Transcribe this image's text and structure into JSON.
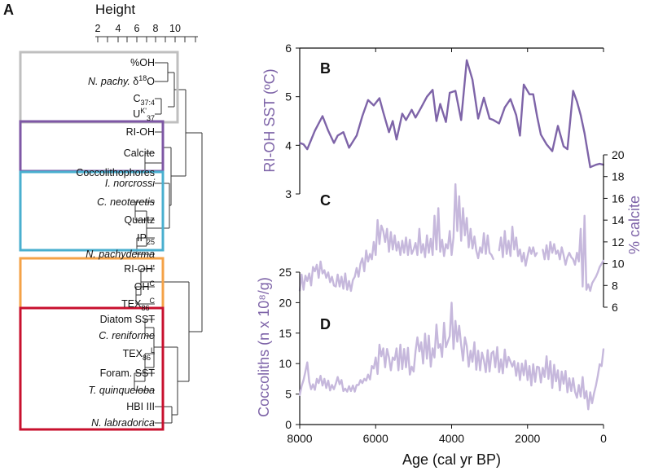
{
  "colors": {
    "purple": "#7E64A8",
    "light_purple": "#C6B8DC",
    "box_gray": "#BFBFBF",
    "box_purple": "#7E57A5",
    "box_blue": "#49AFCF",
    "box_orange": "#F4A247",
    "box_red": "#C8102E"
  },
  "panel_a": {
    "label": "A",
    "height_title": "Height",
    "height_ticks": [
      "2",
      "4",
      "6",
      "8",
      "10"
    ],
    "groups": [
      {
        "color": "gray",
        "items": [
          {
            "type": "plain",
            "t": "%OH"
          },
          {
            "type": "pachy",
            "a": "N. pachy.",
            "b": " δ",
            "c": "18",
            "d": "O"
          },
          {
            "type": "c37",
            "a": "C",
            "b": "37:4"
          },
          {
            "type": "uk",
            "a": "U",
            "b": "K'",
            "c": "37"
          }
        ]
      },
      {
        "color": "purple",
        "items": [
          {
            "type": "plain",
            "t": "RI-OH"
          },
          {
            "type": "plain",
            "t": "Calcite"
          },
          {
            "type": "plain",
            "t": "Coccolithophores"
          }
        ]
      },
      {
        "color": "blue",
        "items": [
          {
            "type": "italic",
            "t": "I. norcrossi"
          },
          {
            "type": "italic",
            "t": "C. neoteretis"
          },
          {
            "type": "plain",
            "t": "Quartz"
          },
          {
            "type": "ip",
            "a": "IP",
            "b": "25"
          },
          {
            "type": "italic",
            "t": "N. pachyderma"
          }
        ]
      },
      {
        "color": "orange",
        "items": [
          {
            "type": "plain",
            "t": "RI-OH'"
          },
          {
            "type": "sup",
            "a": "OH",
            "b": "C"
          },
          {
            "type": "tex",
            "a": "TEX",
            "b": "86",
            "c": "C"
          }
        ]
      },
      {
        "color": "red",
        "items": [
          {
            "type": "plain",
            "t": "Diatom SST"
          },
          {
            "type": "italic",
            "t": "C. reniforme"
          },
          {
            "type": "tex",
            "a": "TEX",
            "b": "86",
            "c": "L"
          },
          {
            "type": "plain",
            "t": "Foram. SST"
          },
          {
            "type": "italic",
            "t": "T. quinqueloba"
          },
          {
            "type": "plain",
            "t": "HBI III"
          },
          {
            "type": "italic",
            "t": "N. labradorica"
          }
        ]
      }
    ]
  },
  "chart_data": [
    {
      "type": "line",
      "panel": "B",
      "ylabel": "RI-OH SST (ºC)",
      "ylim": [
        3,
        6
      ],
      "yticks": [
        "3",
        "4",
        "5",
        "6"
      ],
      "x": [
        8000,
        7900,
        7800,
        7600,
        7400,
        7250,
        7100,
        7000,
        6850,
        6700,
        6500,
        6350,
        6200,
        6050,
        5900,
        5800,
        5650,
        5550,
        5450,
        5300,
        5200,
        5050,
        4950,
        4800,
        4650,
        4500,
        4400,
        4300,
        4150,
        4050,
        3900,
        3750,
        3600,
        3450,
        3300,
        3150,
        3000,
        2900,
        2750,
        2600,
        2450,
        2300,
        2200,
        2100,
        1950,
        1850,
        1750,
        1650,
        1500,
        1350,
        1200,
        1050,
        950,
        800,
        700,
        600,
        500,
        350,
        200,
        100,
        0
      ],
      "y": [
        4.05,
        4.02,
        3.92,
        4.3,
        4.6,
        4.3,
        4.05,
        4.2,
        4.27,
        3.95,
        4.2,
        4.6,
        4.93,
        4.82,
        4.97,
        4.68,
        4.27,
        4.5,
        4.12,
        4.65,
        4.52,
        4.73,
        4.57,
        4.78,
        5.0,
        5.14,
        4.5,
        4.85,
        4.48,
        5.08,
        5.12,
        4.52,
        5.75,
        5.35,
        4.55,
        4.98,
        4.55,
        4.52,
        4.45,
        4.78,
        4.95,
        4.62,
        4.2,
        5.25,
        5.05,
        5.05,
        4.6,
        4.22,
        4.02,
        3.88,
        4.4,
        3.98,
        3.92,
        5.12,
        4.9,
        4.62,
        4.25,
        3.55,
        3.6,
        3.62,
        3.6
      ]
    },
    {
      "type": "line",
      "panel": "C",
      "ylabel": "% calcite",
      "ylim": [
        6,
        20
      ],
      "yticks": [
        "6",
        "8",
        "10",
        "12",
        "14",
        "16",
        "18",
        "20"
      ],
      "x": [
        8000,
        7950,
        7900,
        7850,
        7800,
        7750,
        7700,
        7650,
        7600,
        7550,
        7500,
        7450,
        7400,
        7350,
        7300,
        7250,
        7200,
        7150,
        7100,
        7050,
        7000,
        6950,
        6900,
        6850,
        6800,
        6750,
        6700,
        6650,
        6600,
        6550,
        6500,
        6450,
        6400,
        6350,
        6300,
        6250,
        6200,
        6150,
        6100,
        6050,
        6000,
        5950,
        5900,
        5850,
        5800,
        5750,
        5700,
        5650,
        5600,
        5550,
        5500,
        5450,
        5400,
        5350,
        5300,
        5250,
        5200,
        5150,
        5100,
        5050,
        5000,
        4950,
        4900,
        4850,
        4800,
        4750,
        4700,
        4650,
        4600,
        4550,
        4500,
        4450,
        4400,
        4350,
        4300,
        4250,
        4200,
        4150,
        4100,
        4050,
        4000,
        3950,
        3900,
        3850,
        3800,
        3750,
        3700,
        3650,
        3600,
        3550,
        3500,
        3450,
        3400,
        3350,
        3300,
        3250,
        3200,
        3150,
        3100,
        3050,
        3000,
        2950,
        2900,
        null,
        2750,
        2700,
        2650,
        2600,
        2550,
        2500,
        2450,
        2400,
        2350,
        2300,
        2250,
        2200,
        2150,
        2100,
        2050,
        2000,
        1950,
        1900,
        1850,
        1800,
        1750,
        null,
        1600,
        1550,
        1500,
        1450,
        1400,
        1350,
        1300,
        1250,
        1200,
        1150,
        1100,
        1050,
        1000,
        950,
        900,
        850,
        800,
        750,
        700,
        650,
        600,
        550,
        500,
        450,
        400,
        350,
        300,
        250,
        200,
        150,
        100,
        50,
        0
      ],
      "y": [
        7.5,
        9.0,
        7.6,
        8.9,
        8.4,
        9.1,
        8.0,
        9.7,
        9.3,
        9.9,
        8.7,
        10.2,
        9.1,
        9.4,
        8.7,
        9.2,
        8.3,
        8.8,
        8.0,
        7.9,
        9.0,
        7.9,
        8.8,
        7.7,
        9.1,
        7.6,
        8.4,
        7.5,
        8.5,
        8.8,
        9.6,
        8.8,
        10.0,
        10.5,
        9.3,
        11.2,
        10.2,
        10.9,
        10.4,
        12.0,
        10.8,
        14.0,
        11.8,
        13.5,
        13.0,
        12.0,
        13.2,
        11.1,
        12.9,
        11.3,
        12.6,
        11.2,
        12.0,
        10.8,
        12.1,
        11.0,
        12.4,
        10.8,
        12.2,
        10.9,
        11.3,
        11.9,
        10.8,
        13.2,
        11.0,
        11.8,
        10.6,
        12.6,
        11.0,
        12.3,
        10.8,
        14.4,
        11.3,
        15.1,
        11.1,
        12.2,
        10.7,
        11.8,
        11.4,
        13.0,
        10.8,
        12.4,
        17.3,
        13.0,
        16.2,
        12.1,
        15.1,
        12.6,
        14.2,
        11.5,
        13.2,
        11.4,
        12.5,
        11.2,
        10.5,
        11.5,
        11.0,
        12.8,
        10.9,
        12.6,
        11.0,
        10.8,
        10.4,
        null,
        11.2,
        12.4,
        10.6,
        13.0,
        10.9,
        12.1,
        10.7,
        13.4,
        11.3,
        12.4,
        10.7,
        11.3,
        10.2,
        11.0,
        9.8,
        10.7,
        11.5,
        10.9,
        11.5,
        10.7,
        11.0,
        null,
        11.3,
        10.4,
        11.7,
        10.4,
        12.0,
        11.0,
        11.8,
        10.9,
        11.2,
        10.4,
        11.5,
        10.8,
        9.9,
        10.6,
        11.0,
        10.6,
        10.4,
        9.9,
        11.0,
        10.2,
        13.2,
        7.9,
        14.4,
        7.6,
        8.1,
        7.5,
        8.2,
        8.5,
        8.8,
        9.2,
        9.7,
        10.0,
        10.3
      ]
    },
    {
      "type": "line",
      "panel": "D",
      "xlabel": "Age (cal yr BP)",
      "ylabel": "Coccoliths (n x 10⁸/g)",
      "ylim": [
        0,
        25
      ],
      "yticks": [
        "0",
        "5",
        "10",
        "15",
        "20",
        "25"
      ],
      "xlim": [
        8000,
        0
      ],
      "xticks": [
        "8000",
        "6000",
        "4000",
        "2000",
        "0"
      ],
      "x": [
        8000,
        7950,
        7900,
        7850,
        7800,
        7750,
        7700,
        7650,
        7600,
        7550,
        7500,
        7450,
        7400,
        7350,
        7300,
        7250,
        7200,
        7150,
        7100,
        7050,
        7000,
        6950,
        6900,
        6850,
        6800,
        6750,
        6700,
        6650,
        6600,
        6550,
        6500,
        6450,
        6400,
        6350,
        6300,
        6250,
        6200,
        6150,
        6100,
        6050,
        6000,
        5950,
        5900,
        5850,
        5800,
        5750,
        5700,
        5650,
        5600,
        5550,
        5500,
        5450,
        5400,
        5350,
        5300,
        5250,
        5200,
        5150,
        5100,
        5050,
        5000,
        4950,
        4900,
        4850,
        4800,
        4750,
        4700,
        4650,
        4600,
        4550,
        4500,
        4450,
        4400,
        4350,
        4300,
        4250,
        4200,
        4150,
        4100,
        4050,
        4000,
        3950,
        3900,
        3850,
        3800,
        3750,
        3700,
        3650,
        3600,
        3550,
        3500,
        3450,
        3400,
        3350,
        3300,
        3250,
        3200,
        3150,
        3100,
        3050,
        3000,
        2950,
        2900,
        2850,
        2800,
        2750,
        2700,
        2650,
        2600,
        2550,
        2500,
        2450,
        2400,
        2350,
        2300,
        2250,
        2200,
        2150,
        2100,
        2050,
        2000,
        1950,
        1900,
        1850,
        1800,
        1750,
        1700,
        1650,
        1600,
        1550,
        1500,
        1450,
        1400,
        1350,
        1300,
        1250,
        1200,
        1150,
        1100,
        1050,
        1000,
        950,
        900,
        850,
        800,
        750,
        700,
        650,
        600,
        550,
        500,
        450,
        400,
        350,
        300,
        250,
        200,
        150,
        100,
        50,
        0
      ],
      "y": [
        4.8,
        6.3,
        7.3,
        8.7,
        10.2,
        7.0,
        5.8,
        6.6,
        5.7,
        7.5,
        6.8,
        8.0,
        6.4,
        7.5,
        6.0,
        7.2,
        5.6,
        6.5,
        5.8,
        6.7,
        7.8,
        6.6,
        7.3,
        5.5,
        5.9,
        5.4,
        6.3,
        5.5,
        6.4,
        5.4,
        6.5,
        6.5,
        7.3,
        6.8,
        7.5,
        7.2,
        8.2,
        7.4,
        9.6,
        9.2,
        11.0,
        8.3,
        13.1,
        11.2,
        12.5,
        9.4,
        12.4,
        11.0,
        8.9,
        11.0,
        10.6,
        12.5,
        8.9,
        13.1,
        9.1,
        12.4,
        9.4,
        12.6,
        8.2,
        9.5,
        8.7,
        12.0,
        14.3,
        12.0,
        13.5,
        10.0,
        14.9,
        10.8,
        14.6,
        9.5,
        12.5,
        11.0,
        16.4,
        12.6,
        13.2,
        11.1,
        16.7,
        12.7,
        13.6,
        14.5,
        20.0,
        12.4,
        17.0,
        13.6,
        16.2,
        13.1,
        10.5,
        14.3,
        12.9,
        9.5,
        12.1,
        10.3,
        13.5,
        9.0,
        12.1,
        8.9,
        11.8,
        10.6,
        8.6,
        12.2,
        8.7,
        11.7,
        12.0,
        9.4,
        12.7,
        8.6,
        10.7,
        8.4,
        12.3,
        9.4,
        11.1,
        10.3,
        9.5,
        10.4,
        8.0,
        10.1,
        7.3,
        10.0,
        8.1,
        10.5,
        7.3,
        9.6,
        6.4,
        9.9,
        7.0,
        9.5,
        9.4,
        6.9,
        9.3,
        7.8,
        11.2,
        7.5,
        10.4,
        6.0,
        9.8,
        7.1,
        8.9,
        5.6,
        8.7,
        6.7,
        8.8,
        5.3,
        7.6,
        5.5,
        7.6,
        5.4,
        4.4,
        6.5,
        4.6,
        7.8,
        4.3,
        5.5,
        2.5,
        5.3,
        3.5,
        5.1,
        6.4,
        8.0,
        9.9,
        9.6,
        12.4
      ]
    }
  ]
}
